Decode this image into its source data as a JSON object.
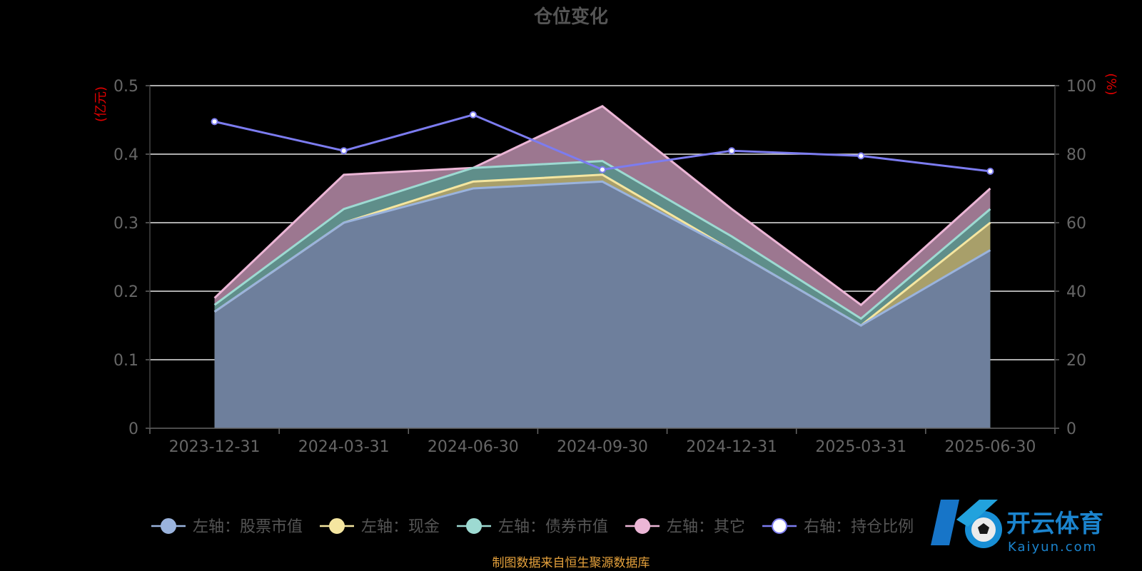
{
  "page": {
    "source_note": "制图数据来自恒生聚源数据库",
    "watermark": {
      "brand": "开云体育",
      "url": "Kaiyun.com"
    }
  },
  "colors": {
    "background": "#000000",
    "title": "#555555",
    "tick_text": "#666666",
    "unit_text": "#e00000",
    "grid": "#ffffff",
    "source_note": "#e6a23c"
  },
  "chart_data": {
    "type": "area",
    "title": "仓位变化",
    "categories": [
      "2023-12-31",
      "2024-03-31",
      "2024-06-30",
      "2024-09-30",
      "2024-12-31",
      "2025-03-31",
      "2025-06-30"
    ],
    "y_left": {
      "unit": "(亿元)",
      "range": [
        0,
        0.5
      ],
      "ticks": [
        "0",
        "0.1",
        "0.2",
        "0.3",
        "0.4",
        "0.5"
      ]
    },
    "y_right": {
      "unit": "(%)",
      "range": [
        0,
        100
      ],
      "ticks": [
        "0",
        "20",
        "40",
        "60",
        "80",
        "100"
      ]
    },
    "grid": true,
    "legend_position": "bottom",
    "series": [
      {
        "name": "左轴：股票市值",
        "axis": "left",
        "kind": "area",
        "stacked_top_values": [
          0.17,
          0.3,
          0.35,
          0.36,
          0.26,
          0.15,
          0.26
        ],
        "line_color": "#9ab3dd",
        "fill_color": "#6e7f9c"
      },
      {
        "name": "左轴：现金",
        "axis": "left",
        "kind": "area",
        "stacked_top_values": [
          0.17,
          0.3,
          0.36,
          0.37,
          0.26,
          0.15,
          0.3
        ],
        "line_color": "#f5e6a0",
        "fill_color": "#a89f6a"
      },
      {
        "name": "左轴：债券市值",
        "axis": "left",
        "kind": "area",
        "stacked_top_values": [
          0.18,
          0.32,
          0.38,
          0.39,
          0.28,
          0.16,
          0.32
        ],
        "line_color": "#9ddad2",
        "fill_color": "#5f8e8a"
      },
      {
        "name": "左轴：其它",
        "axis": "left",
        "kind": "area",
        "stacked_top_values": [
          0.19,
          0.37,
          0.38,
          0.47,
          0.32,
          0.18,
          0.35
        ],
        "line_color": "#ecb6d6",
        "fill_color": "#9c7790"
      },
      {
        "name": "右轴：持仓比例",
        "axis": "right",
        "kind": "line",
        "values": [
          89.5,
          81,
          91.5,
          75.5,
          81,
          79.5,
          75
        ],
        "line_color": "#7c7cf0"
      }
    ]
  }
}
